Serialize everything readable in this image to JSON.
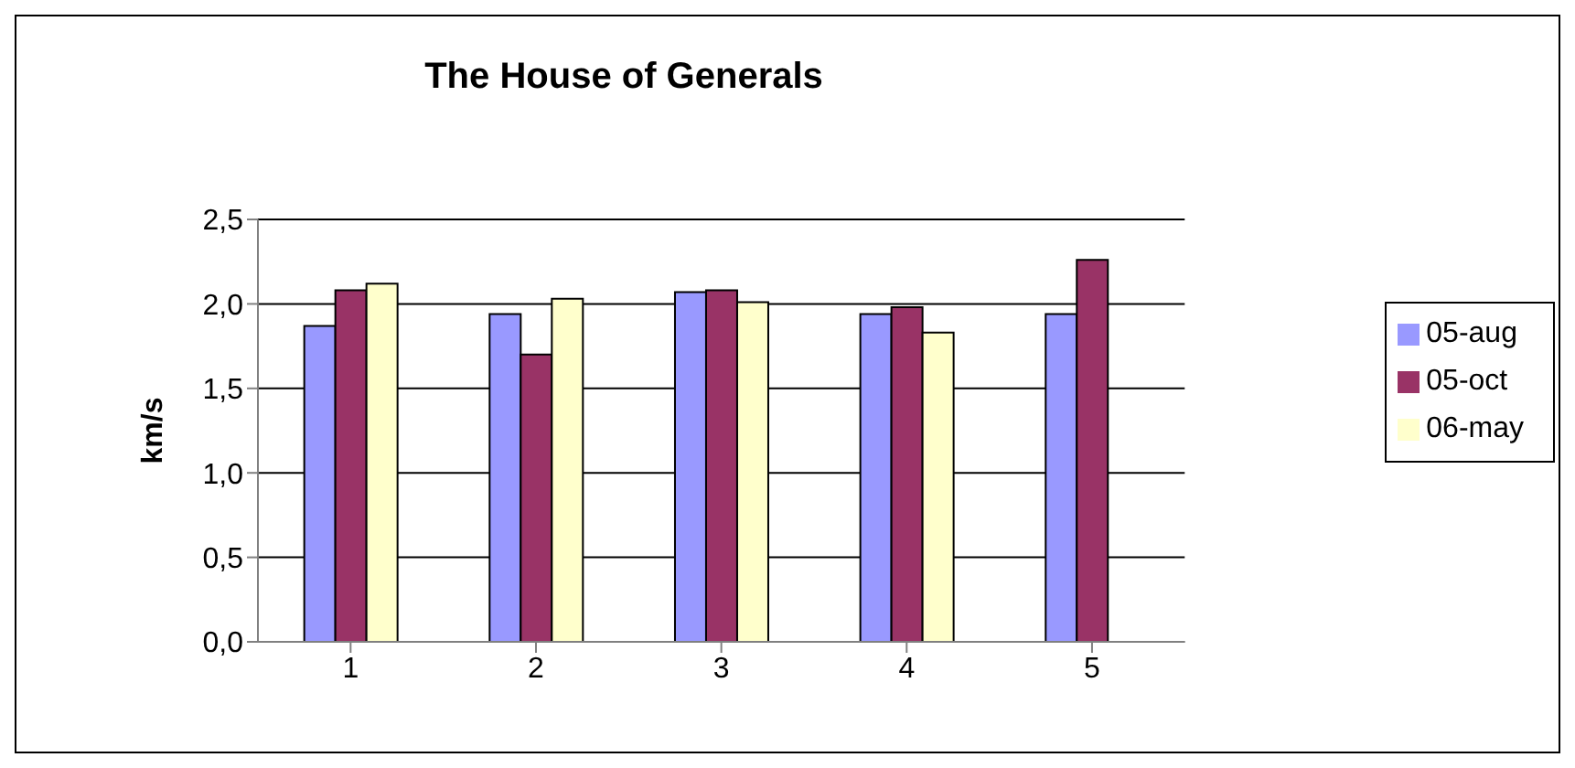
{
  "chart_data": {
    "type": "bar",
    "title": "The House of Generals",
    "ylabel": "km/s",
    "categories": [
      "1",
      "2",
      "3",
      "4",
      "5"
    ],
    "series": [
      {
        "name": "05-aug",
        "color": "#9999ff",
        "values": [
          1.87,
          1.94,
          2.07,
          1.94,
          1.94
        ]
      },
      {
        "name": "05-oct",
        "color": "#993366",
        "values": [
          2.08,
          1.7,
          2.08,
          1.98,
          2.26
        ]
      },
      {
        "name": "06-may",
        "color": "#ffffcc",
        "values": [
          2.12,
          2.03,
          2.01,
          1.83,
          null
        ]
      }
    ],
    "ylim": [
      0,
      2.5
    ],
    "yticks": [
      {
        "value": 0,
        "label": "0,0"
      },
      {
        "value": 0.5,
        "label": "0,5"
      },
      {
        "value": 1,
        "label": "1,0"
      },
      {
        "value": 1.5,
        "label": "1,5"
      },
      {
        "value": 2,
        "label": "2,0"
      },
      {
        "value": 2.5,
        "label": "2,5"
      }
    ],
    "grid": "y",
    "legend": "right"
  }
}
